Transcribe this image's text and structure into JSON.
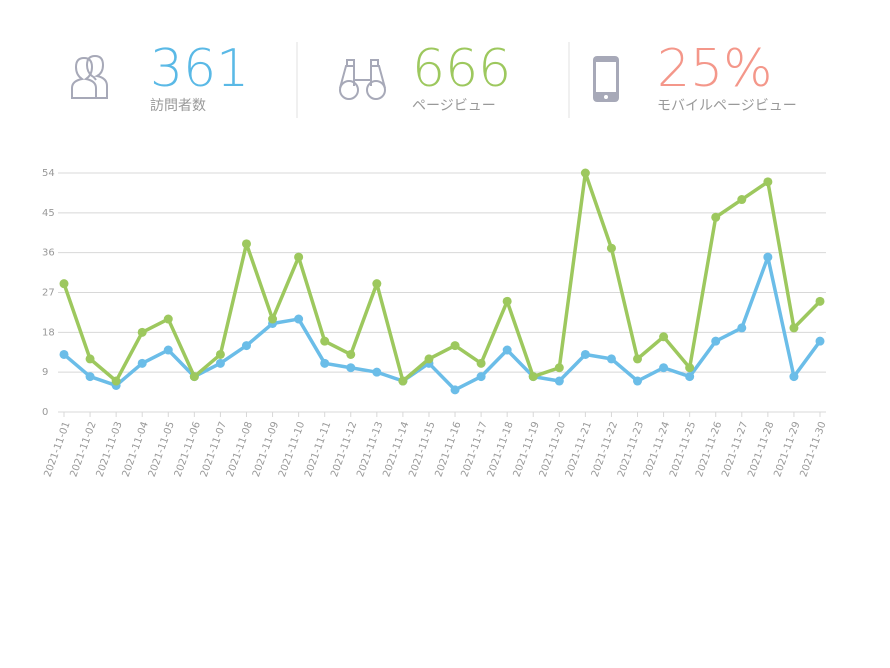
{
  "stats": [
    {
      "value": "361",
      "label": "訪問者数",
      "color": "#5ab9e6"
    },
    {
      "value": "666",
      "label": "ページビュー",
      "color": "#9dc85e"
    },
    {
      "value": "25%",
      "label": "モバイルページビュー",
      "color": "#f4978a"
    }
  ],
  "chart_data": {
    "type": "line",
    "categories": [
      "2021-11-01",
      "2021-11-02",
      "2021-11-03",
      "2021-11-04",
      "2021-11-05",
      "2021-11-06",
      "2021-11-07",
      "2021-11-08",
      "2021-11-09",
      "2021-11-10",
      "2021-11-11",
      "2021-11-12",
      "2021-11-13",
      "2021-11-14",
      "2021-11-15",
      "2021-11-16",
      "2021-11-17",
      "2021-11-18",
      "2021-11-19",
      "2021-11-20",
      "2021-11-21",
      "2021-11-22",
      "2021-11-23",
      "2021-11-24",
      "2021-11-25",
      "2021-11-26",
      "2021-11-27",
      "2021-11-28",
      "2021-11-29",
      "2021-11-30"
    ],
    "series": [
      {
        "color": "#6bbde8",
        "values": [
          13,
          8,
          6,
          11,
          14,
          8,
          11,
          15,
          20,
          21,
          11,
          10,
          9,
          7,
          11,
          5,
          8,
          14,
          8,
          7,
          13,
          12,
          7,
          10,
          8,
          16,
          19,
          35,
          8,
          16
        ]
      },
      {
        "color": "#9dc85e",
        "values": [
          29,
          12,
          7,
          18,
          21,
          8,
          13,
          38,
          21,
          35,
          16,
          13,
          29,
          7,
          12,
          15,
          11,
          25,
          8,
          10,
          54,
          37,
          12,
          17,
          10,
          44,
          48,
          52,
          19,
          25
        ]
      }
    ],
    "ylim": [
      0,
      54
    ],
    "yticks": [
      0,
      9,
      18,
      27,
      36,
      45,
      54
    ],
    "grid": true
  }
}
